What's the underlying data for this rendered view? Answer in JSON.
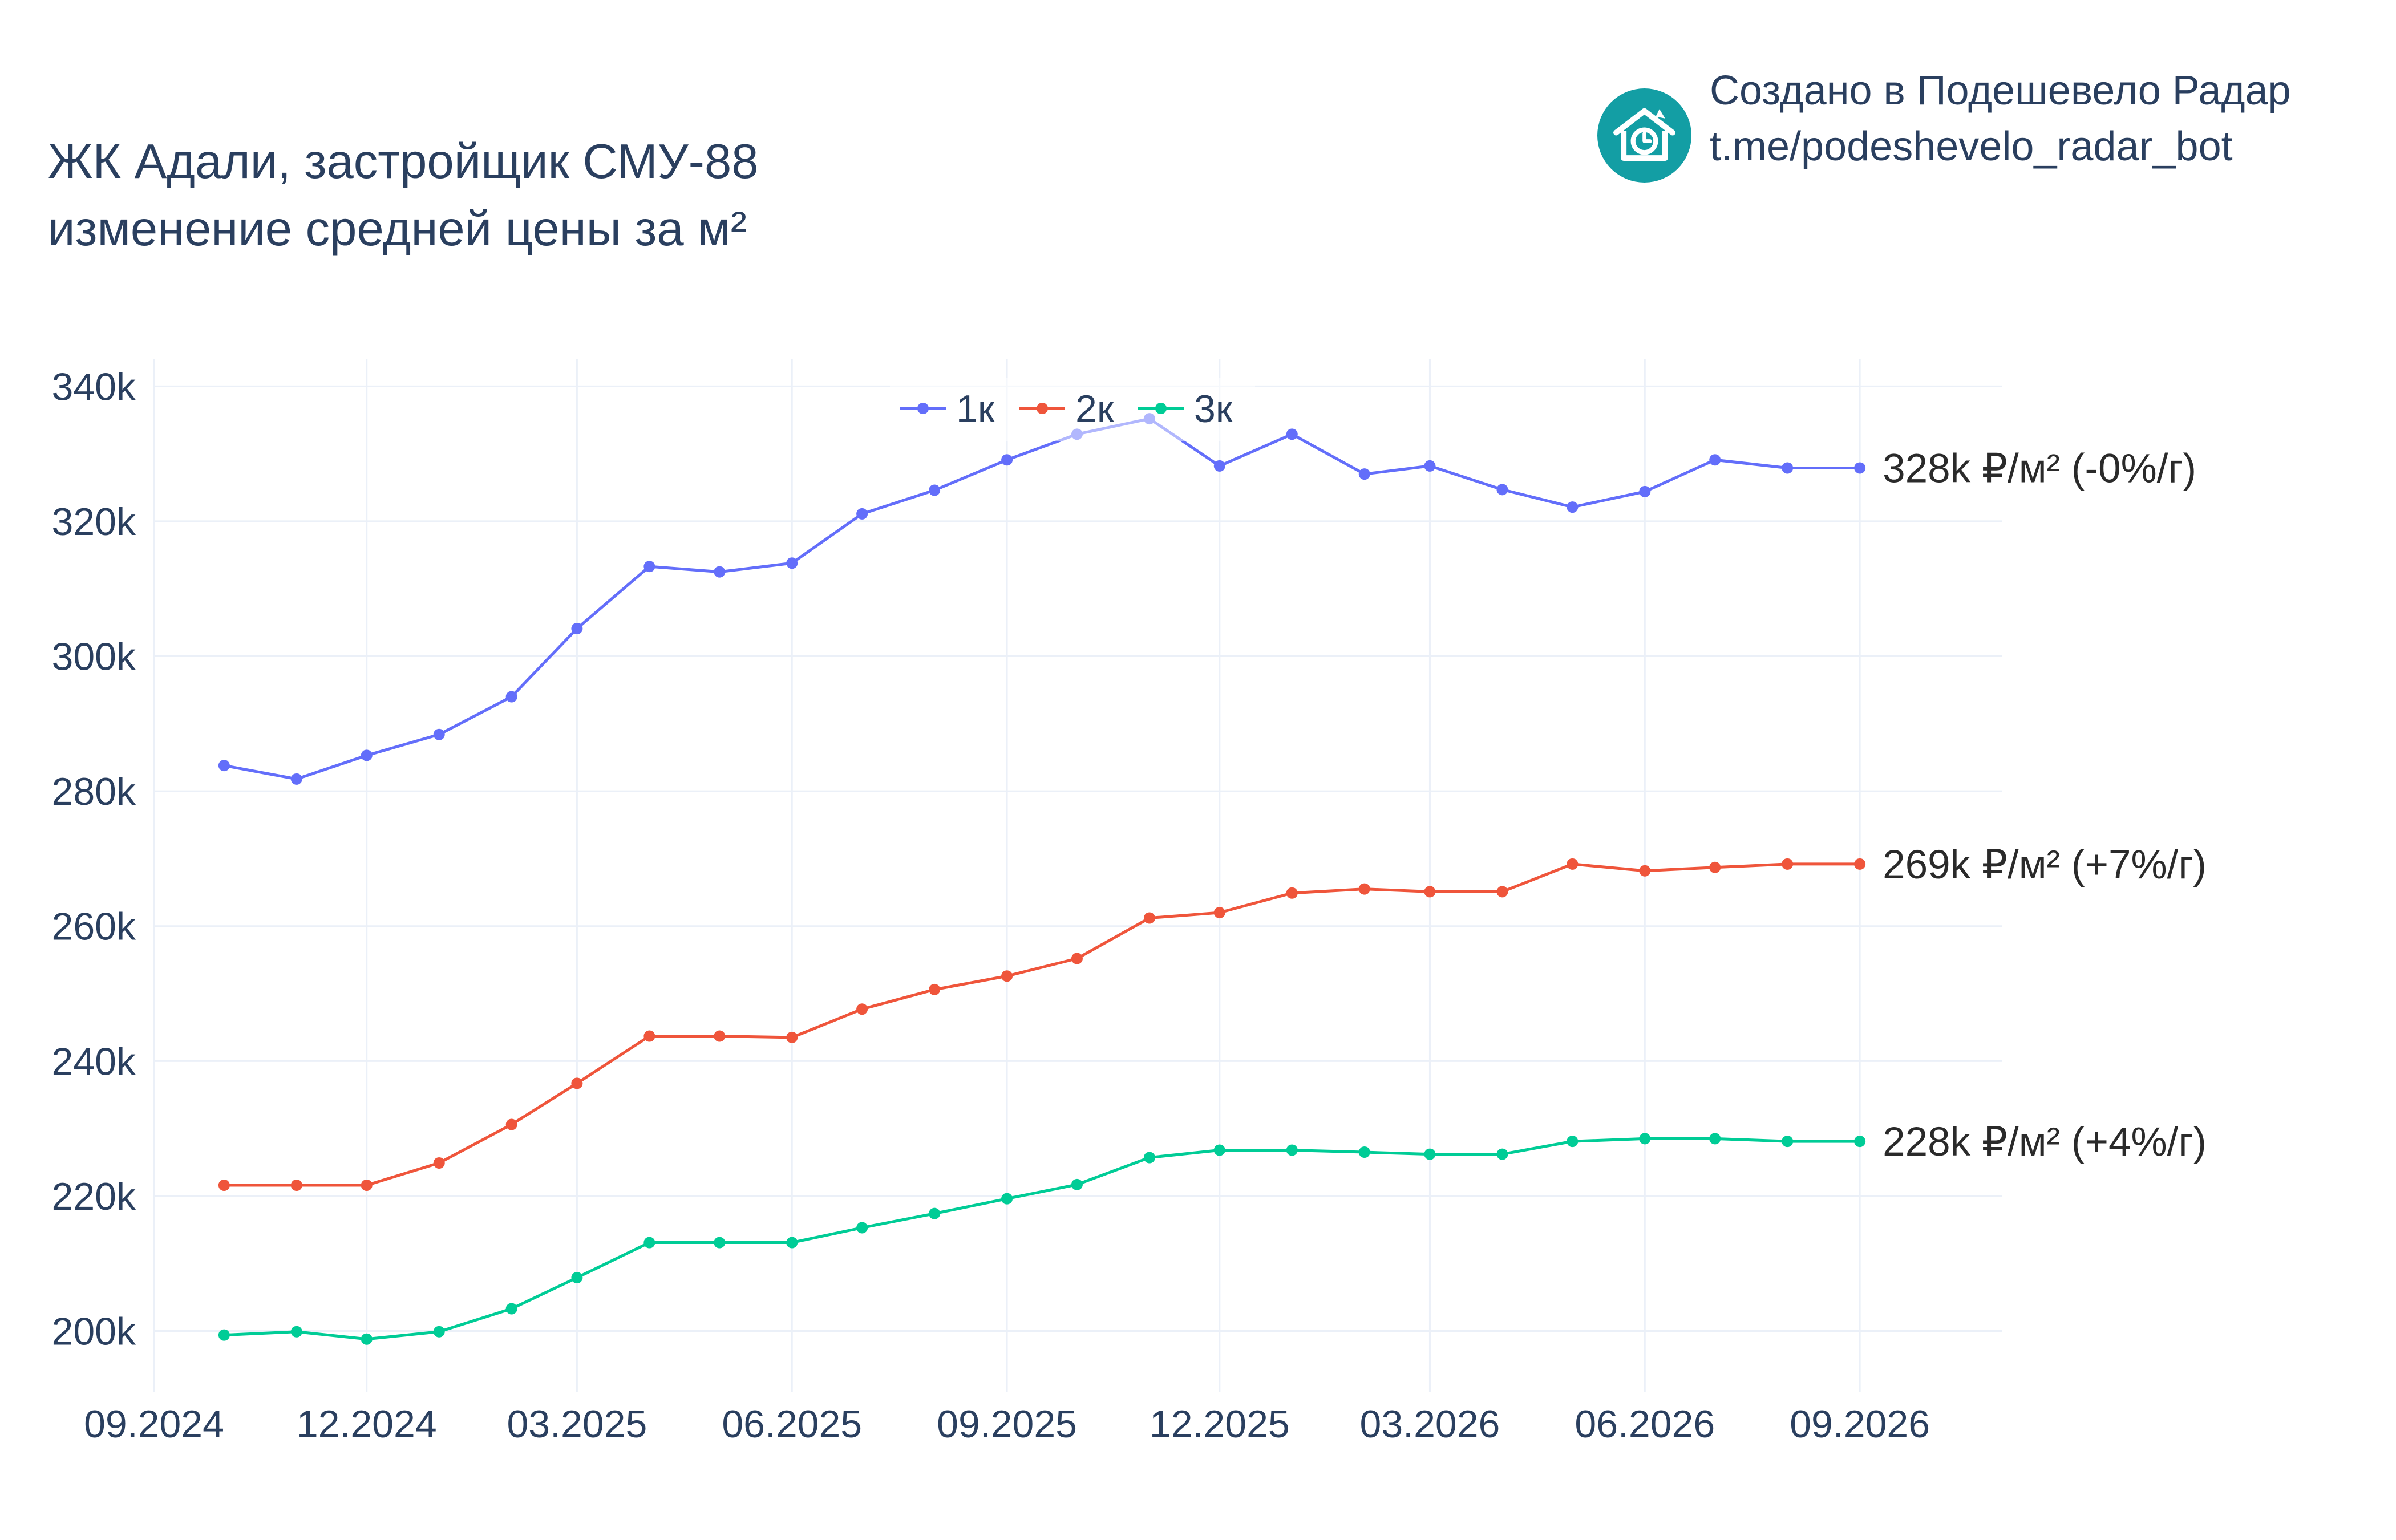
{
  "title": {
    "line1": "ЖК Адали, застройщик СМУ-88",
    "line2": "изменение средней цены за м²"
  },
  "brand": {
    "line1": "Создано в Подешевело Радар",
    "line2": "t.me/podeshevelo_radar_bot",
    "logo_icon": "house-clock-icon",
    "logo_color": "#139ea4"
  },
  "chart_data": {
    "type": "line",
    "x_ticks": [
      "09.2024",
      "12.2024",
      "03.2025",
      "06.2025",
      "09.2025",
      "12.2025",
      "03.2026",
      "06.2026",
      "09.2026"
    ],
    "y_ticks": [
      "340k",
      "320k",
      "300k",
      "280k",
      "260k",
      "240k",
      "220k",
      "200k"
    ],
    "ylim": [
      191000,
      344000
    ],
    "xlim": [
      "2024-09-01",
      "2026-11-01"
    ],
    "grid": true,
    "legend_position": "top-center",
    "x": [
      "2024-10-01",
      "2024-11-01",
      "2024-12-01",
      "2025-01-01",
      "2025-02-01",
      "2025-03-01",
      "2025-04-01",
      "2025-05-01",
      "2025-06-01",
      "2025-07-01",
      "2025-08-01",
      "2025-09-01",
      "2025-10-01",
      "2025-11-01",
      "2025-12-01",
      "2026-01-01",
      "2026-02-01",
      "2026-03-01",
      "2026-04-01",
      "2026-05-01",
      "2026-06-01",
      "2026-07-01",
      "2026-08-01",
      "2026-09-01"
    ],
    "series": [
      {
        "name": "1к",
        "color": "#636efa",
        "values": [
          283800,
          281800,
          285300,
          288400,
          294000,
          304100,
          313300,
          312500,
          313800,
          321100,
          324600,
          329100,
          332900,
          335200,
          328200,
          332900,
          327000,
          328200,
          324700,
          322100,
          324400,
          329100,
          327900,
          327900
        ],
        "end_label": "328k ₽/м² (-0%/г)"
      },
      {
        "name": "2к",
        "color": "#ef553b",
        "values": [
          221600,
          221600,
          221600,
          224900,
          230600,
          236700,
          243700,
          243700,
          243500,
          247700,
          250600,
          252600,
          255200,
          261200,
          262000,
          264900,
          265500,
          265100,
          265100,
          269200,
          268200,
          268700,
          269200,
          269200
        ],
        "end_label": "269k ₽/м² (+7%/г)"
      },
      {
        "name": "3к",
        "color": "#00cc96",
        "values": [
          199400,
          199900,
          198800,
          199900,
          203300,
          207900,
          213100,
          213100,
          213100,
          215300,
          217400,
          219600,
          221700,
          225700,
          226800,
          226800,
          226500,
          226200,
          226200,
          228100,
          228500,
          228500,
          228100,
          228100
        ],
        "end_label": "228k ₽/м² (+4%/г)"
      }
    ]
  }
}
